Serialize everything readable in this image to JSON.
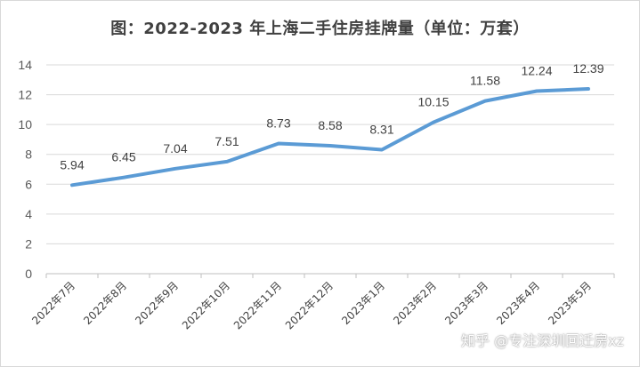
{
  "chart_data": {
    "type": "line",
    "title": "图：2022-2023 年上海二手住房挂牌量（单位：万套）",
    "categories": [
      "2022年7月",
      "2022年8月",
      "2022年9月",
      "2022年10月",
      "2022年11月",
      "2022年12月",
      "2023年1月",
      "2023年2月",
      "2023年3月",
      "2023年4月",
      "2023年5月"
    ],
    "series": [
      {
        "values": [
          5.94,
          6.45,
          7.04,
          7.51,
          8.73,
          8.58,
          8.31,
          10.15,
          11.58,
          12.24,
          12.39
        ],
        "labels": [
          "5.94",
          "6.45",
          "7.04",
          "7.51",
          "8.73",
          "8.58",
          "8.31",
          "10.15",
          "11.58",
          "12.24",
          "12.39"
        ],
        "color": "#5b9bd5"
      }
    ],
    "ylim": [
      0,
      14
    ],
    "yticks": [
      "0",
      "2",
      "4",
      "6",
      "8",
      "10",
      "12",
      "14"
    ],
    "xlabel": "",
    "ylabel": "",
    "grid": true,
    "legend": "none",
    "gridline_color": "#d9d9d9"
  },
  "watermark": "知乎 @专注深圳回迁房xz"
}
